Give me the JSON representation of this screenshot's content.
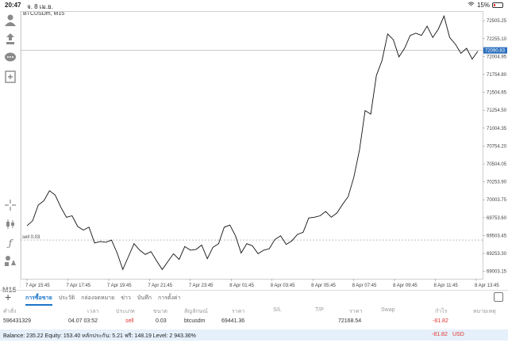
{
  "status": {
    "time": "20:47",
    "date": "จ. 8 เม.ย.",
    "battery": "15%"
  },
  "chart_header": {
    "symbol": "BTCUSDm, M15"
  },
  "timeframe": "M15",
  "chart_data": {
    "type": "line",
    "title": "BTCUSDm, M15",
    "xlabel": "",
    "ylabel": "",
    "x_ticks": [
      "7 Apr 15:45",
      "7 Apr 17:45",
      "7 Apr 19:45",
      "7 Apr 21:45",
      "7 Apr 23:45",
      "8 Apr 01:45",
      "8 Apr 03:45",
      "8 Apr 05:45",
      "8 Apr 07:45",
      "8 Apr 09:45",
      "8 Apr 11:45",
      "8 Apr 13:45"
    ],
    "y_ticks": [
      "72505.25",
      "72255.10",
      "72004.95",
      "71754.80",
      "71504.65",
      "71254.50",
      "71004.35",
      "70754.20",
      "70504.05",
      "70253.90",
      "70003.75",
      "69753.60",
      "69503.45",
      "69253.30",
      "69003.15"
    ],
    "ylim": [
      68900,
      72640
    ],
    "current_price_label": "72090.83",
    "current_price": 72090.83,
    "order_line": {
      "label": "sell 0.03",
      "price": 69441.36
    },
    "series": [
      {
        "values": [
          69640,
          69710,
          69930,
          69990,
          70130,
          70070,
          69900,
          69760,
          69780,
          69630,
          69580,
          69620,
          69400,
          69420,
          69410,
          69440,
          69260,
          69030,
          69210,
          69390,
          69300,
          69240,
          69280,
          69150,
          69030,
          69140,
          69250,
          69170,
          69350,
          69300,
          69310,
          69370,
          69180,
          69340,
          69390,
          69620,
          69650,
          69500,
          69260,
          69390,
          69360,
          69250,
          69300,
          69320,
          69450,
          69500,
          69380,
          69430,
          69520,
          69550,
          69750,
          69760,
          69780,
          69840,
          69760,
          69820,
          69940,
          70050,
          70320,
          70700,
          71250,
          71200,
          71740,
          71950,
          72320,
          72240,
          72000,
          72120,
          72300,
          72330,
          72300,
          72430,
          72270,
          72390,
          72570,
          72270,
          72180,
          72050,
          72120,
          71970,
          72080
        ]
      }
    ],
    "grid": false
  },
  "tabs": [
    "การซื้อขาย",
    "ประวัติ",
    "กล่องจดหมาย",
    "ข่าว",
    "บันทึก",
    "การตั้งค่า"
  ],
  "table": {
    "headers": [
      "คำสั่ง",
      "เวลา",
      "ประเภท",
      "ขนาด",
      "สัญลักษณ์",
      "ราคา",
      "S/L",
      "T/P",
      "ราคา",
      "Swap",
      "กำไร",
      "หมายเหตุ"
    ],
    "row": {
      "order": "596431329",
      "time": "04.07 03:52",
      "type": "sell",
      "size": "0.03",
      "symbol": "btcusdm",
      "price": "69441.36",
      "current_price": "72168.54",
      "profit": "-81.82"
    }
  },
  "footer": {
    "balance": "Balance: 235.22 Equity: 153.40 หลักประกัน: 5.21 ฟรี: 148.19 Level: 2 943.36%",
    "profit": "-81.82",
    "currency": "USD"
  }
}
